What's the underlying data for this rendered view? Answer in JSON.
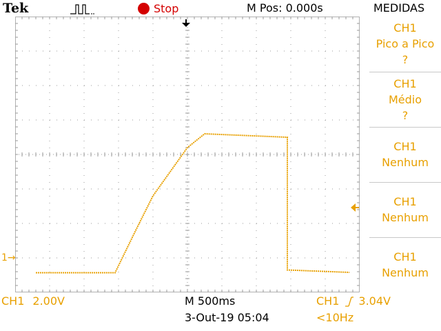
{
  "header": {
    "brand": "Tek",
    "trigger_state_icon": "trigger-pulse-icon",
    "acquisition_status": "Stop",
    "status_color": "#d40000",
    "horizontal_position": "M Pos: 0.000s",
    "menu_title": "MEDIDAS"
  },
  "waveform": {
    "channel": "CH1",
    "color": "#e8a000",
    "ground_marker": "1",
    "divisions": {
      "horizontal": 10,
      "vertical": 8
    },
    "points_div": [
      [
        0.6,
        0.07
      ],
      [
        2.9,
        0.07
      ],
      [
        3.5,
        1.3
      ],
      [
        4.0,
        2.3
      ],
      [
        5.0,
        3.7
      ],
      [
        5.5,
        4.1
      ],
      [
        7.9,
        4.0
      ],
      [
        7.9,
        0.15
      ],
      [
        9.7,
        0.08
      ]
    ]
  },
  "side_menu": [
    {
      "channel": "CH1",
      "measurement": "Pico a Pico",
      "value": "?"
    },
    {
      "channel": "CH1",
      "measurement": "Médio",
      "value": "?"
    },
    {
      "channel": "CH1",
      "measurement": "Nenhum"
    },
    {
      "channel": "CH1",
      "measurement": "Nenhum"
    },
    {
      "channel": "CH1",
      "measurement": "Nenhum"
    }
  ],
  "footer": {
    "ch1_label": "CH1",
    "ch1_scale": "2.00V",
    "timebase": "M 500ms",
    "datetime": "3-Out-19 05:04",
    "trigger_source": "CH1",
    "trigger_slope_icon": "rising-edge-icon",
    "trigger_level": "3.04V",
    "frequency": "<10Hz"
  }
}
